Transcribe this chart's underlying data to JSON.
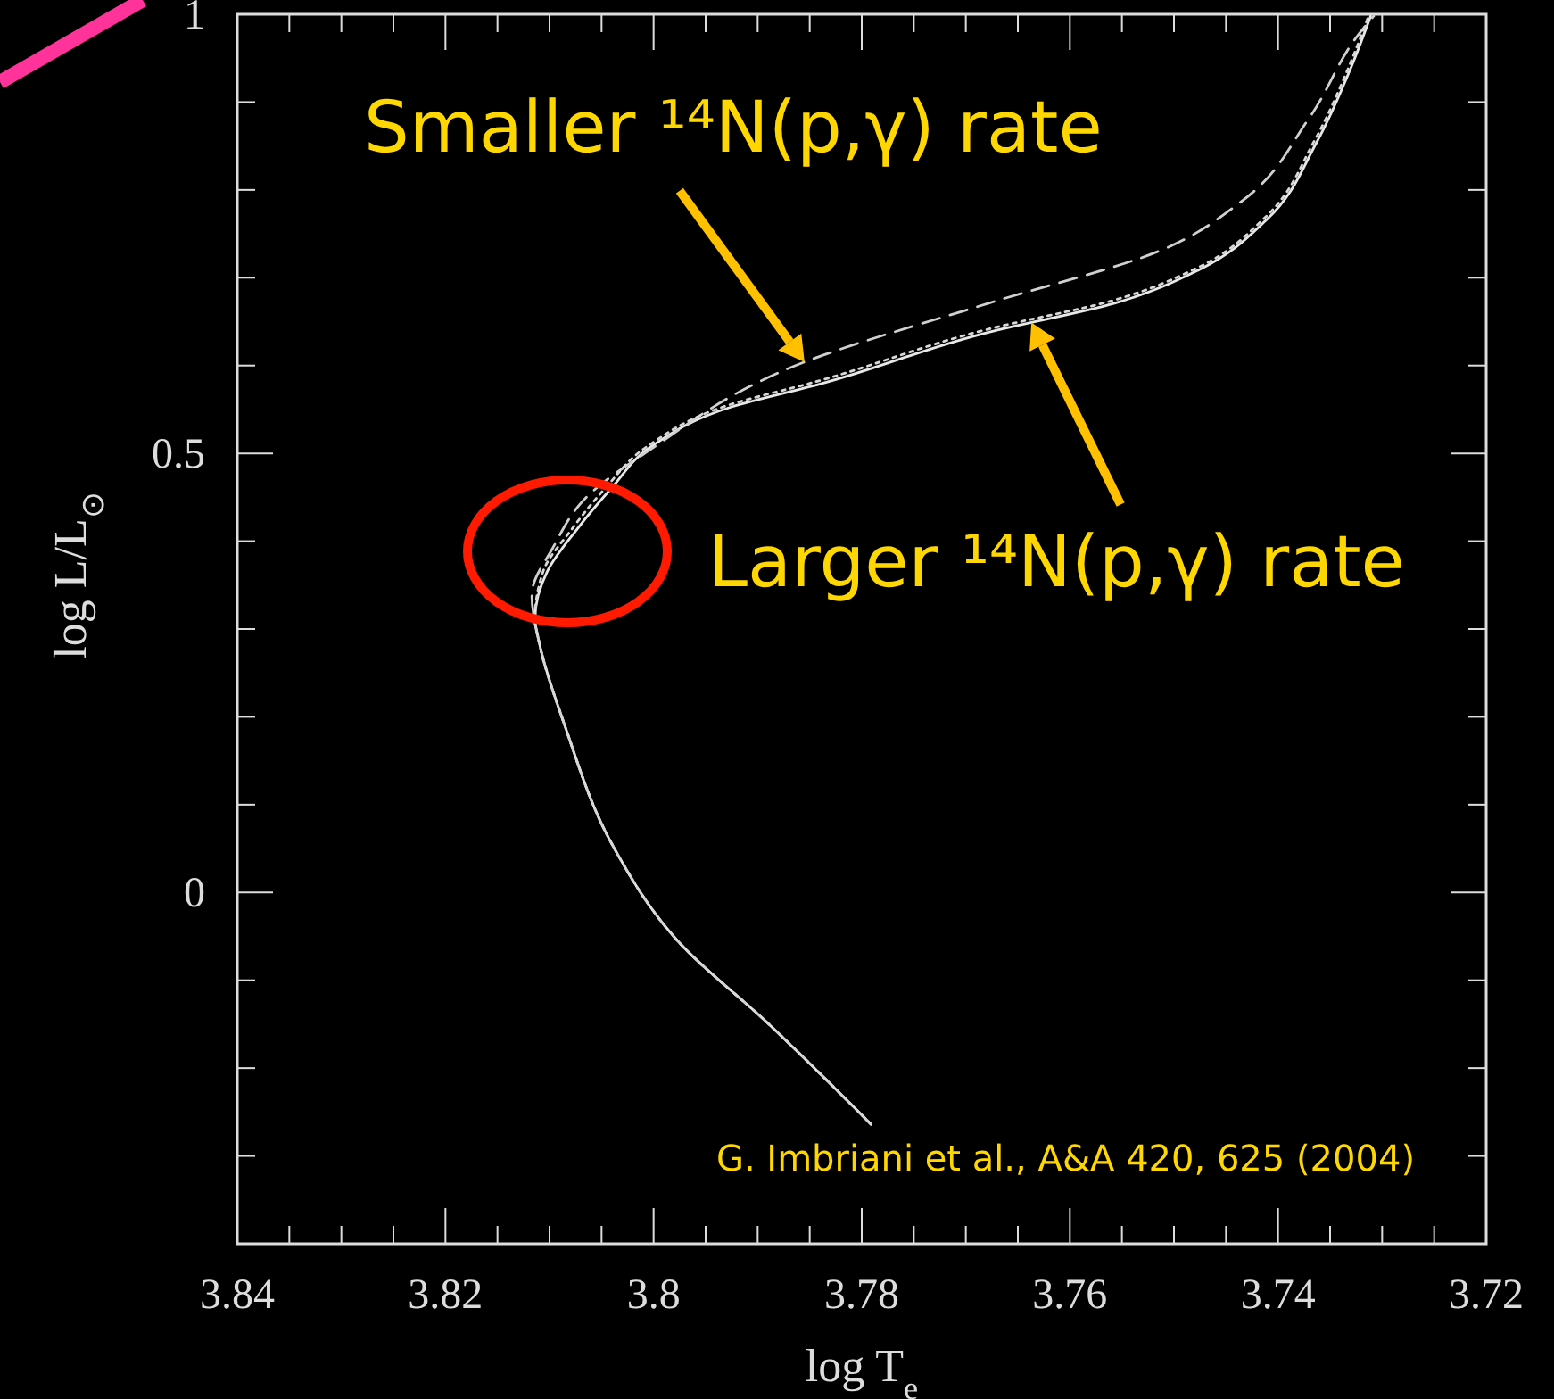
{
  "chart_data": {
    "type": "line",
    "xlabel": "log T$_{e}$",
    "ylabel": "log L/L$_{⊙}$",
    "xlim": [
      3.84,
      3.72
    ],
    "ylim": [
      -0.4,
      1
    ],
    "xticks": [
      3.84,
      {
        "value": 3.835,
        "label": null
      },
      {
        "value": 3.83,
        "label": null
      },
      {
        "value": 3.825,
        "label": null
      },
      3.82,
      {
        "value": 3.815,
        "label": null
      },
      {
        "value": 3.81,
        "label": null
      },
      {
        "value": 3.805,
        "label": null
      },
      3.8,
      {
        "value": 3.795,
        "label": null
      },
      {
        "value": 3.79,
        "label": null
      },
      {
        "value": 3.785,
        "label": null
      },
      3.78,
      {
        "value": 3.775,
        "label": null
      },
      {
        "value": 3.77,
        "label": null
      },
      {
        "value": 3.765,
        "label": null
      },
      3.76,
      {
        "value": 3.755,
        "label": null
      },
      {
        "value": 3.75,
        "label": null
      },
      {
        "value": 3.745,
        "label": null
      },
      3.74,
      {
        "value": 3.735,
        "label": null
      },
      {
        "value": 3.73,
        "label": null
      },
      {
        "value": 3.725,
        "label": null
      },
      3.72
    ],
    "yticks": [
      {
        "value": -0.3,
        "label": null
      },
      {
        "value": -0.2,
        "label": null
      },
      {
        "value": -0.1,
        "label": null
      },
      0,
      {
        "value": 0.1,
        "label": null
      },
      {
        "value": 0.2,
        "label": null
      },
      {
        "value": 0.3,
        "label": null
      },
      {
        "value": 0.4,
        "label": null
      },
      0.5,
      {
        "value": 0.6,
        "label": null
      },
      {
        "value": 0.7,
        "label": null
      },
      {
        "value": 0.8,
        "label": null
      },
      {
        "value": 0.9,
        "label": null
      },
      1
    ],
    "series": [
      {
        "color": "#e8e8e8",
        "line_style": "solid",
        "x": [
          3.7791,
          3.7891,
          3.7977,
          3.804,
          3.8085,
          3.811,
          3.8114,
          3.8102,
          3.8074,
          3.804,
          3.8002,
          3.7925,
          3.784,
          3.7678,
          3.7557,
          3.7476,
          3.7411,
          3.7363,
          3.733,
          3.7311
        ],
        "values": [
          -0.264,
          -0.148,
          -0.055,
          0.055,
          0.189,
          0.285,
          0.311,
          0.366,
          0.413,
          0.461,
          0.508,
          0.553,
          0.579,
          0.638,
          0.671,
          0.709,
          0.766,
          0.854,
          0.939,
          0.998
        ]
      },
      {
        "color": "#d0d0d0",
        "line_style": "dashed",
        "x": [
          3.7791,
          3.7891,
          3.7977,
          3.804,
          3.8085,
          3.811,
          3.8117,
          3.8097,
          3.8062,
          3.8006,
          3.7855,
          3.7678,
          3.7515,
          3.7435,
          3.737,
          3.7322,
          3.7308
        ],
        "values": [
          -0.264,
          -0.148,
          -0.055,
          0.055,
          0.189,
          0.285,
          0.339,
          0.392,
          0.453,
          0.502,
          0.604,
          0.671,
          0.73,
          0.787,
          0.882,
          0.978,
          0.998
        ]
      },
      {
        "color": "#d8d8d8",
        "line_style": "dotted",
        "x": [
          3.7791,
          3.7891,
          3.7977,
          3.804,
          3.8085,
          3.811,
          3.8114,
          3.8106,
          3.8079,
          3.8046,
          3.8006,
          3.7928,
          3.7843,
          3.768,
          3.7559,
          3.7478,
          3.7413,
          3.7365,
          3.7332,
          3.7313
        ],
        "values": [
          -0.264,
          -0.148,
          -0.055,
          0.055,
          0.189,
          0.285,
          0.311,
          0.366,
          0.413,
          0.461,
          0.508,
          0.555,
          0.582,
          0.641,
          0.674,
          0.711,
          0.768,
          0.856,
          0.94,
          0.998
        ]
      }
    ],
    "annotations": [
      {
        "text": "Smaller ¹⁴N(p,γ) rate",
        "x": 3.7855,
        "y": 0.604
      },
      {
        "text": "Larger ¹⁴N(p,γ) rate",
        "x": 3.7637,
        "y": 0.649
      },
      "G. Imbriani et al., A&A 420, 625 (2004)"
    ]
  }
}
